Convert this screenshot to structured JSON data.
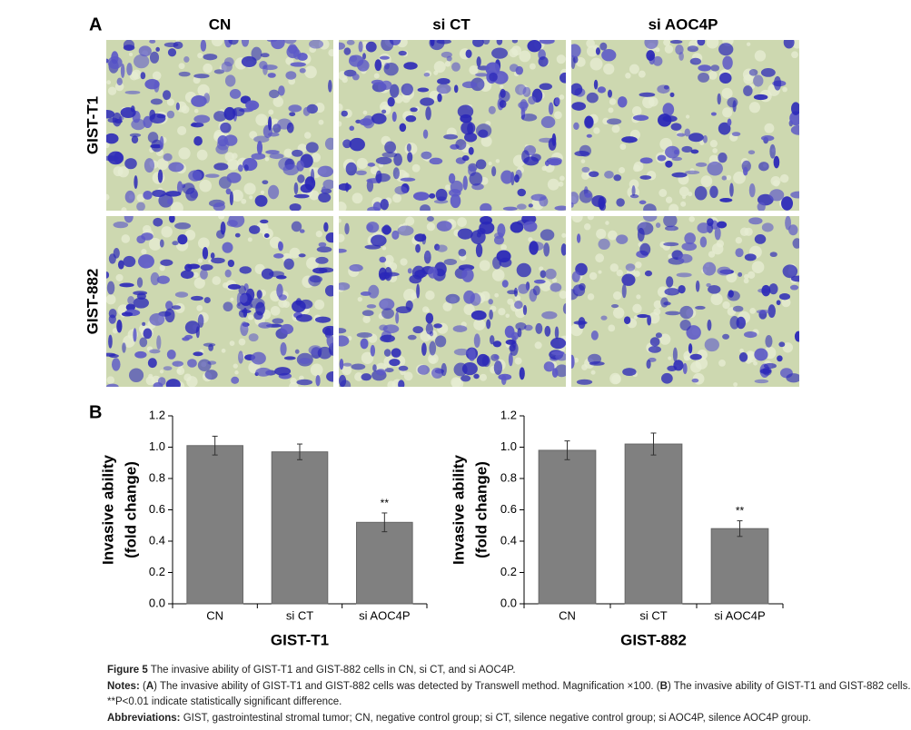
{
  "panel_a": {
    "label": "A",
    "columns": [
      "CN",
      "si CT",
      "si AOC4P"
    ],
    "rows": [
      "GIST-T1",
      "GIST-882"
    ]
  },
  "panel_b": {
    "label": "B"
  },
  "chart_data": [
    {
      "type": "bar",
      "xlabel": "GIST-T1",
      "ylabel": [
        "Invasive ability",
        "(fold change)"
      ],
      "categories": [
        "CN",
        "si CT",
        "si AOC4P"
      ],
      "values": [
        1.01,
        0.97,
        0.52
      ],
      "errors": [
        0.06,
        0.05,
        0.06
      ],
      "significance": [
        null,
        null,
        "**"
      ],
      "color": "#808080",
      "ylim": [
        0,
        1.2
      ],
      "yticks": [
        {
          "value": 0,
          "label": "0.0"
        },
        0.2,
        0.4,
        0.6,
        0.8,
        {
          "value": 1,
          "label": "1.0"
        },
        1.2
      ]
    },
    {
      "type": "bar",
      "xlabel": "GIST-882",
      "ylabel": [
        "Invasive ability",
        "(fold change)"
      ],
      "categories": [
        "CN",
        "si CT",
        "si AOC4P"
      ],
      "values": [
        0.98,
        1.02,
        0.48
      ],
      "errors": [
        0.06,
        0.07,
        0.05
      ],
      "significance": [
        null,
        null,
        "**"
      ],
      "color": "#808080",
      "ylim": [
        0,
        1.2
      ],
      "yticks": [
        {
          "value": 0,
          "label": "0.0"
        },
        0.2,
        0.4,
        0.6,
        0.8,
        {
          "value": 1,
          "label": "1.0"
        },
        1.2
      ]
    }
  ],
  "caption": {
    "figure_label": "Figure 5",
    "figure_text": "The invasive ability of GIST-T1 and GIST-882 cells in CN, si CT, and si AOC4P.",
    "notes_label": "Notes:",
    "notes_runs": [
      {
        "text": "(",
        "bold": false
      },
      {
        "text": "A",
        "bold": true
      },
      {
        "text": ") The invasive ability of GIST-T1 and GIST-882 cells was detected by Transwell method. Magnification ×100. (",
        "bold": false
      },
      {
        "text": "B",
        "bold": true
      },
      {
        "text": ") The invasive ability of GIST-T1 and GIST-882 cells.",
        "bold": false
      }
    ],
    "notes_line2": "**P<0.01 indicate statistically significant difference.",
    "abbreviations_label": "Abbreviations:",
    "abbreviations_text": "GIST, gastrointestinal stromal tumor; CN, negative control group; si CT, silence negative control group; si AOC4P, silence AOC4P group."
  }
}
